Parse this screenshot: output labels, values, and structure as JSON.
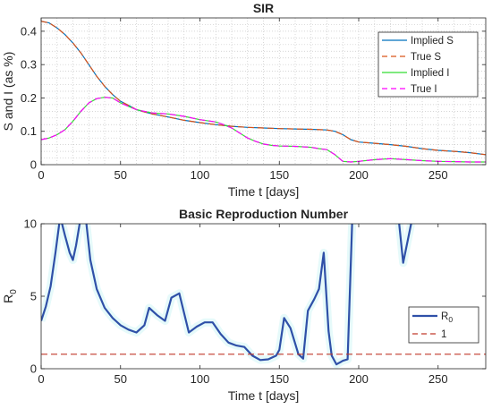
{
  "chart_data": [
    {
      "type": "line",
      "title": "SIR",
      "xlabel": "Time t [days]",
      "ylabel": "S and I (as %)",
      "xlim": [
        0,
        280
      ],
      "ylim": [
        0,
        0.44
      ],
      "xticks": [
        0,
        50,
        100,
        150,
        200,
        250
      ],
      "yticks": [
        0,
        0.1,
        0.2,
        0.3,
        0.4
      ],
      "grid": "on (major and minor, dotted)",
      "legend_position": "top-right",
      "series": [
        {
          "name": "Implied S",
          "style": "solid",
          "color": "#0072BD",
          "x": [
            0,
            5,
            10,
            15,
            20,
            25,
            30,
            35,
            40,
            45,
            50,
            55,
            60,
            65,
            70,
            80,
            90,
            100,
            110,
            120,
            130,
            140,
            150,
            160,
            170,
            180,
            185,
            190,
            195,
            200,
            210,
            220,
            230,
            240,
            250,
            260,
            270,
            280
          ],
          "y": [
            0.43,
            0.425,
            0.41,
            0.39,
            0.365,
            0.335,
            0.3,
            0.265,
            0.235,
            0.21,
            0.19,
            0.178,
            0.165,
            0.158,
            0.152,
            0.143,
            0.133,
            0.126,
            0.12,
            0.115,
            0.112,
            0.11,
            0.108,
            0.107,
            0.106,
            0.104,
            0.1,
            0.09,
            0.075,
            0.068,
            0.064,
            0.06,
            0.055,
            0.048,
            0.043,
            0.04,
            0.036,
            0.03
          ]
        },
        {
          "name": "True S",
          "style": "dashed",
          "color": "#D95319",
          "x": [
            0,
            5,
            10,
            15,
            20,
            25,
            30,
            35,
            40,
            45,
            50,
            55,
            60,
            65,
            70,
            80,
            90,
            100,
            110,
            120,
            130,
            140,
            150,
            160,
            170,
            180,
            185,
            190,
            195,
            200,
            210,
            220,
            230,
            240,
            250,
            260,
            270,
            280
          ],
          "y": [
            0.43,
            0.425,
            0.41,
            0.39,
            0.365,
            0.335,
            0.3,
            0.265,
            0.235,
            0.21,
            0.19,
            0.178,
            0.165,
            0.158,
            0.152,
            0.143,
            0.133,
            0.126,
            0.12,
            0.115,
            0.112,
            0.11,
            0.108,
            0.107,
            0.106,
            0.104,
            0.1,
            0.09,
            0.075,
            0.068,
            0.064,
            0.06,
            0.055,
            0.048,
            0.043,
            0.04,
            0.036,
            0.03
          ]
        },
        {
          "name": "Implied I",
          "style": "solid",
          "color": "#33DD33",
          "x": [
            0,
            5,
            10,
            15,
            20,
            25,
            30,
            35,
            40,
            45,
            50,
            55,
            60,
            65,
            70,
            80,
            90,
            100,
            110,
            115,
            120,
            125,
            130,
            135,
            140,
            145,
            150,
            160,
            170,
            175,
            180,
            185,
            190,
            195,
            200,
            210,
            220,
            230,
            240,
            250,
            260,
            270,
            280
          ],
          "y": [
            0.075,
            0.08,
            0.09,
            0.105,
            0.13,
            0.16,
            0.185,
            0.198,
            0.202,
            0.2,
            0.185,
            0.175,
            0.165,
            0.16,
            0.155,
            0.152,
            0.145,
            0.135,
            0.128,
            0.12,
            0.11,
            0.095,
            0.08,
            0.07,
            0.062,
            0.058,
            0.056,
            0.055,
            0.052,
            0.048,
            0.045,
            0.03,
            0.01,
            0.008,
            0.01,
            0.015,
            0.018,
            0.015,
            0.012,
            0.01,
            0.009,
            0.008,
            0.008
          ]
        },
        {
          "name": "True I",
          "style": "dashed",
          "color": "#FF00FF",
          "x": [
            0,
            5,
            10,
            15,
            20,
            25,
            30,
            35,
            40,
            45,
            50,
            55,
            60,
            65,
            70,
            80,
            90,
            100,
            110,
            115,
            120,
            125,
            130,
            135,
            140,
            145,
            150,
            160,
            170,
            175,
            180,
            185,
            190,
            195,
            200,
            210,
            220,
            230,
            240,
            250,
            260,
            270,
            280
          ],
          "y": [
            0.075,
            0.08,
            0.09,
            0.105,
            0.13,
            0.16,
            0.185,
            0.198,
            0.202,
            0.2,
            0.185,
            0.175,
            0.165,
            0.16,
            0.155,
            0.152,
            0.145,
            0.135,
            0.128,
            0.12,
            0.11,
            0.095,
            0.08,
            0.07,
            0.062,
            0.058,
            0.056,
            0.055,
            0.052,
            0.048,
            0.045,
            0.03,
            0.01,
            0.008,
            0.01,
            0.015,
            0.018,
            0.015,
            0.012,
            0.01,
            0.009,
            0.008,
            0.008
          ]
        }
      ]
    },
    {
      "type": "line",
      "title": "Basic Reproduction Number",
      "xlabel": "Time t [days]",
      "ylabel": "R",
      "ylabel_subscript": "0",
      "xlim": [
        0,
        280
      ],
      "ylim": [
        0,
        10
      ],
      "xticks": [
        0,
        50,
        100,
        150,
        200,
        250
      ],
      "yticks": [
        0,
        5,
        10
      ],
      "grid": "off",
      "legend_position": "bottom-right",
      "series": [
        {
          "name": "R",
          "name_subscript": "0",
          "style": "solid",
          "color": "#2F50A8",
          "band": "#E6FAFA",
          "x": [
            0,
            3,
            6,
            9,
            12,
            15,
            18,
            20,
            22,
            25,
            28,
            31,
            35,
            40,
            45,
            50,
            55,
            60,
            65,
            68,
            73,
            78,
            82,
            87,
            93,
            98,
            103,
            108,
            113,
            118,
            123,
            128,
            133,
            138,
            143,
            148,
            150,
            153,
            157,
            162,
            165,
            168,
            172,
            175,
            178,
            181,
            183,
            186,
            190,
            193,
            196,
            225,
            228,
            233
          ],
          "y": [
            3.3,
            4.3,
            5.7,
            8,
            10.5,
            9.2,
            8,
            7.5,
            8.5,
            10.5,
            10.5,
            7.5,
            5.5,
            4.2,
            3.5,
            3,
            2.7,
            2.5,
            3,
            4.2,
            3.7,
            3.3,
            4.9,
            5.2,
            2.5,
            2.9,
            3.2,
            3.2,
            2.4,
            1.8,
            1.6,
            1.5,
            0.9,
            0.6,
            0.65,
            0.9,
            1.3,
            3.5,
            2.8,
            1,
            0.7,
            4,
            4.8,
            5.5,
            8,
            2.6,
            0.9,
            0.3,
            0.55,
            0.65,
            10.5,
            10.5,
            7.3,
            10
          ]
        },
        {
          "name": "1",
          "style": "dashed",
          "color": "#C0392B",
          "x": [
            0,
            280
          ],
          "y": [
            1,
            1
          ]
        }
      ]
    }
  ]
}
